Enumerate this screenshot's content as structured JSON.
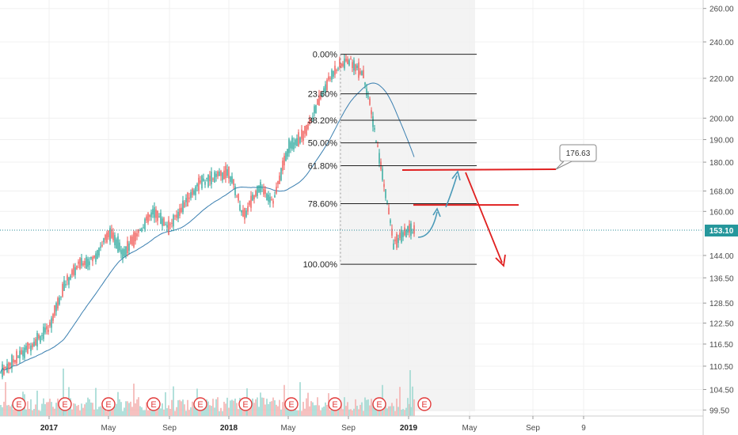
{
  "chart_data": {
    "type": "candlestick",
    "yaxis": {
      "scale": "log",
      "range": [
        98,
        268
      ],
      "ticks": [
        "260.00",
        "240.00",
        "220.00",
        "200.00",
        "190.00",
        "180.00",
        "168.00",
        "160.00",
        "153.10",
        "144.00",
        "136.50",
        "128.50",
        "122.50",
        "116.50",
        "110.50",
        "104.50",
        "99.50"
      ]
    },
    "xaxis": {
      "ticks": [
        {
          "label": "2017",
          "bold": true
        },
        {
          "label": "May",
          "bold": false
        },
        {
          "label": "Sep",
          "bold": false
        },
        {
          "label": "2018",
          "bold": true
        },
        {
          "label": "May",
          "bold": false
        },
        {
          "label": "Sep",
          "bold": false
        },
        {
          "label": "2019",
          "bold": true
        },
        {
          "label": "May",
          "bold": false
        },
        {
          "label": "Sep",
          "bold": false
        },
        {
          "label": "9",
          "bold": false
        }
      ]
    },
    "last_price": "153.10",
    "fib_levels": [
      {
        "label": "0.00%",
        "price": 233
      },
      {
        "label": "23.60%",
        "price": 212
      },
      {
        "label": "38.20%",
        "price": 199
      },
      {
        "label": "50.00%",
        "price": 188.5
      },
      {
        "label": "61.80%",
        "price": 178.5
      },
      {
        "label": "78.60%",
        "price": 163
      },
      {
        "label": "100.00%",
        "price": 141
      }
    ],
    "annotations": {
      "callout_label": "176.63",
      "resistance_levels": [
        176.63,
        162.5
      ]
    },
    "earnings_marker": "E",
    "series_key_points": [
      {
        "t": "2016-09",
        "price": 106
      },
      {
        "t": "2016-12",
        "price": 117
      },
      {
        "t": "2017-01",
        "price": 121
      },
      {
        "t": "2017-02",
        "price": 134
      },
      {
        "t": "2017-03",
        "price": 141
      },
      {
        "t": "2017-04",
        "price": 143
      },
      {
        "t": "2017-05",
        "price": 152
      },
      {
        "t": "2017-06",
        "price": 145
      },
      {
        "t": "2017-08",
        "price": 160
      },
      {
        "t": "2017-09",
        "price": 154
      },
      {
        "t": "2017-11",
        "price": 171
      },
      {
        "t": "2018-01",
        "price": 176
      },
      {
        "t": "2018-02",
        "price": 158
      },
      {
        "t": "2018-03",
        "price": 170
      },
      {
        "t": "2018-04",
        "price": 164
      },
      {
        "t": "2018-05",
        "price": 187
      },
      {
        "t": "2018-06",
        "price": 192
      },
      {
        "t": "2018-08",
        "price": 224
      },
      {
        "t": "2018-09",
        "price": 230
      },
      {
        "t": "2018-10",
        "price": 222
      },
      {
        "t": "2018-11",
        "price": 184
      },
      {
        "t": "2018-12",
        "price": 148
      },
      {
        "t": "2019-01",
        "price": 153
      }
    ]
  }
}
